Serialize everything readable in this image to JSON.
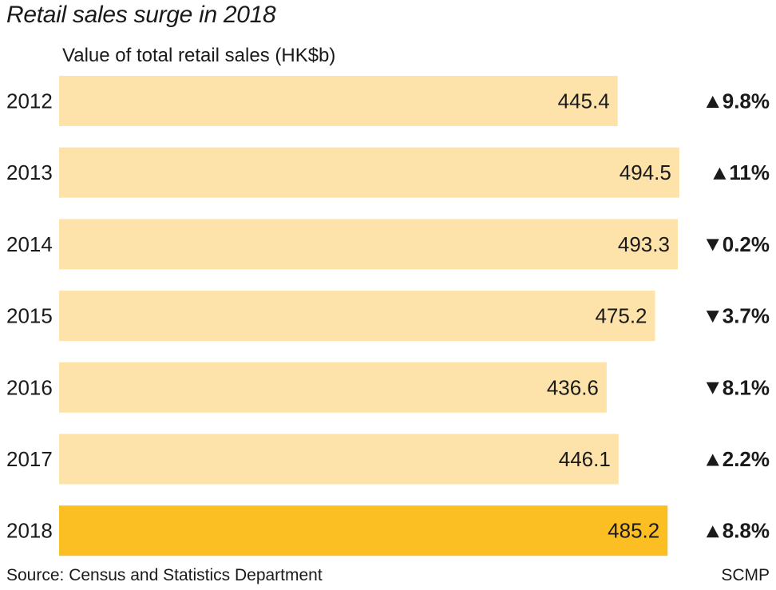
{
  "chart_data": {
    "type": "bar",
    "orientation": "horizontal",
    "title": "Retail sales surge in 2018",
    "subtitle": "Value of total retail sales (HK$b)",
    "categories": [
      "2012",
      "2013",
      "2014",
      "2015",
      "2016",
      "2017",
      "2018"
    ],
    "values": [
      445.4,
      494.5,
      493.3,
      475.2,
      436.6,
      446.1,
      485.2
    ],
    "value_labels": [
      "445.4",
      "494.5",
      "493.3",
      "475.2",
      "436.6",
      "446.1",
      "485.2"
    ],
    "changes": [
      {
        "direction": "up",
        "text": "9.8%"
      },
      {
        "direction": "up",
        "text": "11%"
      },
      {
        "direction": "down",
        "text": "0.2%"
      },
      {
        "direction": "down",
        "text": "3.7%"
      },
      {
        "direction": "down",
        "text": "8.1%"
      },
      {
        "direction": "up",
        "text": "2.2%"
      },
      {
        "direction": "up",
        "text": "8.8%"
      }
    ],
    "highlight_category": "2018",
    "xlim": [
      0,
      500
    ],
    "grid": false,
    "legend": "none"
  },
  "colors": {
    "bar": "#fde3a9",
    "bar_highlight": "#fcbf23",
    "text": "#1a1a1a"
  },
  "footer": {
    "source": "Source: Census and Statistics Department",
    "brand": "SCMP"
  }
}
